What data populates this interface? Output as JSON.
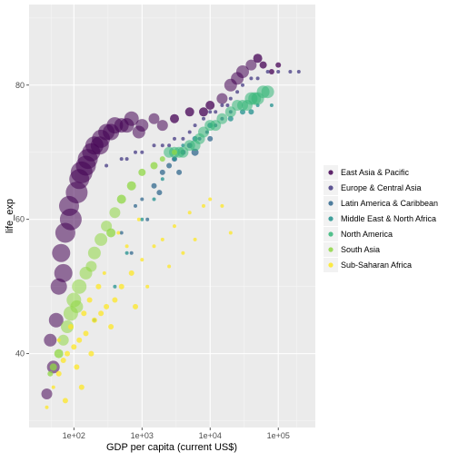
{
  "chart_data": {
    "type": "scatter",
    "xlabel": "GDP per capita (current US$)",
    "ylabel": "life_exp",
    "x_scale": "log10",
    "xlim": [
      22,
      350000
    ],
    "ylim": [
      29,
      92
    ],
    "x_ticks": [
      100,
      1000,
      10000,
      100000
    ],
    "x_tick_labels": [
      "1e+02",
      "1e+03",
      "1e+04",
      "1e+05"
    ],
    "y_ticks": [
      40,
      60,
      80
    ],
    "y_tick_labels": [
      "40",
      "60",
      "80"
    ],
    "grid": true,
    "legend_position": "right",
    "series": [
      {
        "name": "East Asia & Pacific",
        "color": "#440154",
        "points": [
          [
            40,
            34
          ],
          [
            55,
            45
          ],
          [
            70,
            52
          ],
          [
            90,
            60
          ],
          [
            110,
            64
          ],
          [
            130,
            67
          ],
          [
            160,
            69
          ],
          [
            200,
            71
          ],
          [
            250,
            72
          ],
          [
            300,
            73
          ],
          [
            400,
            74
          ],
          [
            500,
            74
          ],
          [
            700,
            75
          ],
          [
            900,
            73
          ],
          [
            1000,
            74
          ],
          [
            1500,
            75
          ],
          [
            2000,
            74
          ],
          [
            3000,
            75
          ],
          [
            5000,
            76
          ],
          [
            8000,
            76
          ],
          [
            10000,
            77
          ],
          [
            15000,
            78
          ],
          [
            20000,
            80
          ],
          [
            25000,
            81
          ],
          [
            30000,
            82
          ],
          [
            40000,
            83
          ],
          [
            50000,
            84
          ],
          [
            60000,
            83
          ],
          [
            80000,
            82
          ],
          [
            100000,
            83
          ],
          [
            75,
            58
          ],
          [
            60,
            50
          ],
          [
            50,
            38
          ],
          [
            45,
            42
          ],
          [
            65,
            55
          ],
          [
            85,
            62
          ],
          [
            120,
            66
          ],
          [
            150,
            68
          ],
          [
            180,
            70
          ],
          [
            240,
            71
          ],
          [
            350,
            73
          ],
          [
            600,
            74
          ]
        ],
        "sizes": [
          6,
          8,
          10,
          12,
          12,
          12,
          11,
          10,
          10,
          9,
          9,
          8,
          8,
          7,
          7,
          6,
          6,
          5,
          5,
          5,
          5,
          6,
          7,
          7,
          7,
          6,
          5,
          4,
          3,
          3,
          11,
          9,
          7,
          7,
          10,
          11,
          11,
          11,
          10,
          10,
          9,
          8
        ]
      },
      {
        "name": "Europe & Central Asia",
        "color": "#443983",
        "points": [
          [
            300,
            68
          ],
          [
            500,
            69
          ],
          [
            800,
            70
          ],
          [
            1000,
            70
          ],
          [
            1500,
            71
          ],
          [
            2000,
            71
          ],
          [
            3000,
            72
          ],
          [
            5000,
            73
          ],
          [
            8000,
            75
          ],
          [
            10000,
            76
          ],
          [
            15000,
            77
          ],
          [
            20000,
            78
          ],
          [
            25000,
            79
          ],
          [
            30000,
            80
          ],
          [
            40000,
            81
          ],
          [
            50000,
            81
          ],
          [
            70000,
            82
          ],
          [
            100000,
            82
          ],
          [
            150000,
            82
          ],
          [
            200000,
            82
          ],
          [
            4000,
            72
          ],
          [
            6000,
            74
          ],
          [
            12000,
            76
          ],
          [
            18000,
            77
          ],
          [
            600,
            69
          ],
          [
            2500,
            71
          ]
        ],
        "sizes": [
          2,
          2,
          2,
          2,
          2,
          2,
          2,
          2,
          2,
          2,
          2,
          2,
          2,
          2,
          2,
          2,
          2,
          2,
          2,
          2,
          2,
          2,
          2,
          2,
          2,
          2
        ]
      },
      {
        "name": "Latin America & Caribbean",
        "color": "#31688e",
        "points": [
          [
            500,
            58
          ],
          [
            800,
            62
          ],
          [
            1000,
            63
          ],
          [
            1500,
            65
          ],
          [
            2000,
            67
          ],
          [
            2500,
            68
          ],
          [
            3000,
            69
          ],
          [
            4000,
            70
          ],
          [
            5000,
            71
          ],
          [
            7000,
            72
          ],
          [
            9000,
            73
          ],
          [
            12000,
            74
          ],
          [
            15000,
            75
          ],
          [
            20000,
            76
          ],
          [
            700,
            55
          ],
          [
            1200,
            60
          ],
          [
            1800,
            64
          ],
          [
            6000,
            70
          ],
          [
            10000,
            72
          ],
          [
            3500,
            67
          ]
        ],
        "sizes": [
          2,
          2,
          2,
          3,
          3,
          3,
          3,
          3,
          3,
          2,
          2,
          2,
          2,
          2,
          2,
          2,
          3,
          4,
          3,
          3
        ]
      },
      {
        "name": "Middle East & North Africa",
        "color": "#21908d",
        "points": [
          [
            200,
            45
          ],
          [
            400,
            50
          ],
          [
            600,
            55
          ],
          [
            1000,
            60
          ],
          [
            1500,
            63
          ],
          [
            2000,
            66
          ],
          [
            3000,
            69
          ],
          [
            4000,
            71
          ],
          [
            6000,
            72
          ],
          [
            10000,
            74
          ],
          [
            20000,
            75
          ],
          [
            30000,
            76
          ],
          [
            40000,
            76
          ],
          [
            50000,
            77
          ],
          [
            80000,
            77
          ]
        ],
        "sizes": [
          2,
          2,
          2,
          2,
          2,
          2,
          2,
          2,
          3,
          3,
          3,
          3,
          3,
          2,
          2
        ]
      },
      {
        "name": "North America",
        "color": "#35b779",
        "points": [
          [
            2500,
            70
          ],
          [
            3000,
            70
          ],
          [
            4000,
            70
          ],
          [
            5000,
            71
          ],
          [
            7000,
            72
          ],
          [
            10000,
            74
          ],
          [
            15000,
            75
          ],
          [
            20000,
            76
          ],
          [
            25000,
            77
          ],
          [
            30000,
            77
          ],
          [
            40000,
            78
          ],
          [
            50000,
            78
          ],
          [
            60000,
            79
          ],
          [
            70000,
            79
          ],
          [
            3500,
            70
          ],
          [
            6000,
            71
          ],
          [
            8000,
            73
          ],
          [
            12000,
            74
          ],
          [
            35000,
            77
          ],
          [
            45000,
            78
          ]
        ],
        "sizes": [
          6,
          6,
          6,
          6,
          6,
          6,
          6,
          6,
          6,
          6,
          7,
          7,
          7,
          7,
          6,
          6,
          6,
          6,
          6,
          7
        ]
      },
      {
        "name": "South Asia",
        "color": "#8fd744",
        "points": [
          [
            50,
            38
          ],
          [
            60,
            40
          ],
          [
            70,
            42
          ],
          [
            80,
            44
          ],
          [
            90,
            46
          ],
          [
            100,
            48
          ],
          [
            120,
            50
          ],
          [
            150,
            52
          ],
          [
            200,
            55
          ],
          [
            250,
            57
          ],
          [
            300,
            59
          ],
          [
            400,
            61
          ],
          [
            500,
            63
          ],
          [
            700,
            65
          ],
          [
            1000,
            67
          ],
          [
            1500,
            68
          ],
          [
            2000,
            69
          ],
          [
            3000,
            70
          ],
          [
            45,
            37
          ],
          [
            110,
            47
          ],
          [
            180,
            53
          ],
          [
            350,
            58
          ]
        ],
        "sizes": [
          4,
          5,
          6,
          7,
          8,
          8,
          8,
          7,
          7,
          7,
          6,
          6,
          5,
          5,
          4,
          4,
          3,
          3,
          3,
          7,
          6,
          5
        ]
      },
      {
        "name": "Sub-Saharan Africa",
        "color": "#fde725",
        "points": [
          [
            40,
            32
          ],
          [
            50,
            35
          ],
          [
            60,
            37
          ],
          [
            70,
            39
          ],
          [
            80,
            40
          ],
          [
            100,
            41
          ],
          [
            120,
            42
          ],
          [
            150,
            43
          ],
          [
            200,
            45
          ],
          [
            250,
            46
          ],
          [
            300,
            47
          ],
          [
            400,
            48
          ],
          [
            500,
            50
          ],
          [
            700,
            52
          ],
          [
            1000,
            54
          ],
          [
            1500,
            56
          ],
          [
            2000,
            57
          ],
          [
            3000,
            59
          ],
          [
            5000,
            61
          ],
          [
            8000,
            62
          ],
          [
            10000,
            63
          ],
          [
            15000,
            62
          ],
          [
            20000,
            58
          ],
          [
            90,
            44
          ],
          [
            110,
            38
          ],
          [
            140,
            46
          ],
          [
            180,
            40
          ],
          [
            230,
            50
          ],
          [
            350,
            44
          ],
          [
            600,
            56
          ],
          [
            800,
            47
          ],
          [
            1200,
            50
          ],
          [
            2500,
            53
          ],
          [
            4000,
            55
          ],
          [
            6000,
            57
          ],
          [
            130,
            35
          ],
          [
            170,
            48
          ],
          [
            280,
            52
          ],
          [
            450,
            58
          ],
          [
            900,
            60
          ],
          [
            60,
            42
          ],
          [
            75,
            33
          ]
        ],
        "sizes": [
          2,
          2,
          3,
          3,
          3,
          3,
          3,
          3,
          3,
          3,
          3,
          3,
          3,
          3,
          2,
          2,
          2,
          2,
          2,
          2,
          2,
          2,
          2,
          3,
          3,
          3,
          3,
          3,
          3,
          2,
          3,
          2,
          2,
          2,
          2,
          3,
          3,
          2,
          2,
          2,
          2,
          3
        ]
      }
    ]
  }
}
